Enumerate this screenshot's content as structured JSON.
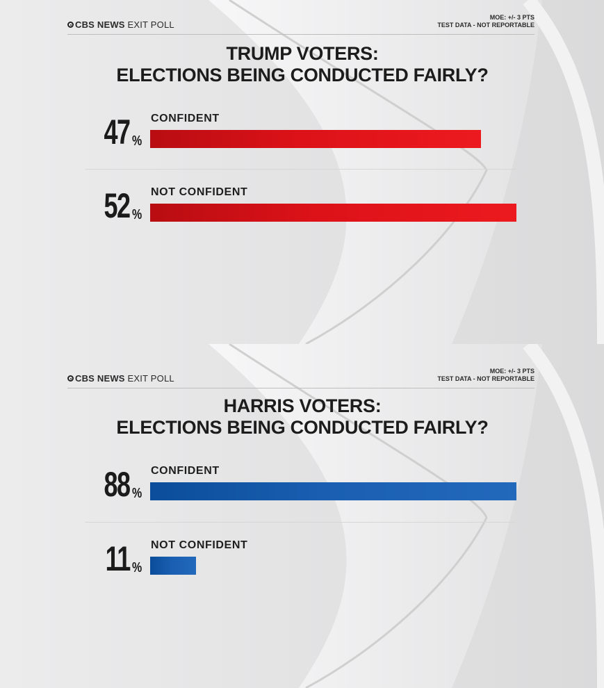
{
  "brand": {
    "name": "CBS NEWS",
    "suffix": "EXIT POLL"
  },
  "disclaimer": {
    "moe": "MOE: +/- 3 PTS",
    "note": "TEST DATA - NOT REPORTABLE"
  },
  "colors": {
    "trump_bar": "#e11319",
    "harris_bar": "#1a5cae",
    "text": "#1c1c1c"
  },
  "chart_data": [
    {
      "type": "bar",
      "orientation": "horizontal",
      "title_line1": "TRUMP VOTERS:",
      "title_line2": "ELECTIONS BEING CONDUCTED FAIRLY?",
      "categories": [
        "CONFIDENT",
        "NOT CONFIDENT"
      ],
      "values": [
        47,
        52
      ],
      "value_labels": [
        "47",
        "52"
      ],
      "unit": "%",
      "xlim": [
        0,
        52
      ],
      "grid": false
    },
    {
      "type": "bar",
      "orientation": "horizontal",
      "title_line1": "HARRIS VOTERS:",
      "title_line2": "ELECTIONS BEING CONDUCTED FAIRLY?",
      "categories": [
        "CONFIDENT",
        "NOT CONFIDENT"
      ],
      "values": [
        88,
        11
      ],
      "value_labels": [
        "88",
        "11"
      ],
      "unit": "%",
      "xlim": [
        0,
        88
      ],
      "grid": false
    }
  ]
}
